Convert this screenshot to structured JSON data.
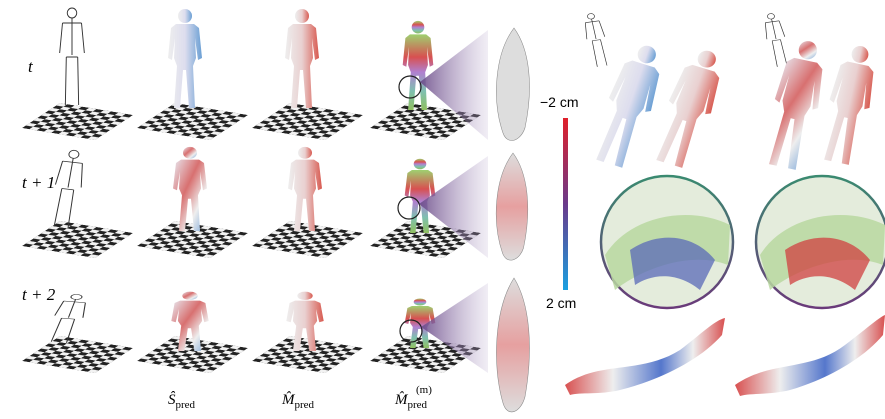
{
  "rows": [
    "t",
    "t + 1",
    "t + 2"
  ],
  "columns": [
    {
      "base": "Ŝ",
      "sub": "pred"
    },
    {
      "base": "M̂",
      "sub": "pred"
    },
    {
      "base": "M̂",
      "sub": "pred",
      "sup": "(m)"
    }
  ],
  "colorbar": {
    "top": "−2 cm",
    "bottom": "2 cm"
  }
}
